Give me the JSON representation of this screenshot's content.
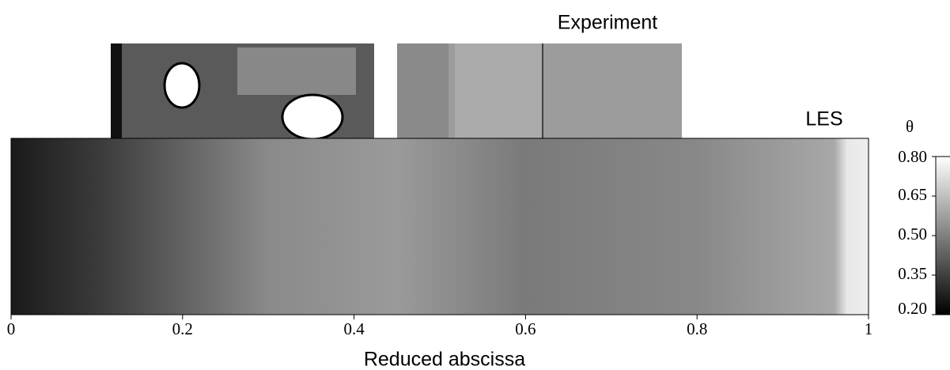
{
  "chart_data": {
    "type": "contour",
    "panel_labels": [
      "Experiment",
      "LES"
    ],
    "xlabel": "Reduced abscissa",
    "xlim": [
      0,
      1
    ],
    "xticks": [
      0,
      0.2,
      0.4,
      0.6,
      0.8,
      1
    ],
    "colorbar": {
      "title": "θ",
      "lim": [
        0.2,
        0.8
      ],
      "ticks": [
        {
          "value": 0.2,
          "label": "0.20"
        },
        {
          "value": 0.35,
          "label": "0.35"
        },
        {
          "value": 0.5,
          "label": "0.50"
        },
        {
          "value": 0.65,
          "label": "0.65"
        },
        {
          "value": 0.8,
          "label": "0.80"
        }
      ],
      "colors": [
        "#000000",
        "#ffffff"
      ]
    }
  }
}
